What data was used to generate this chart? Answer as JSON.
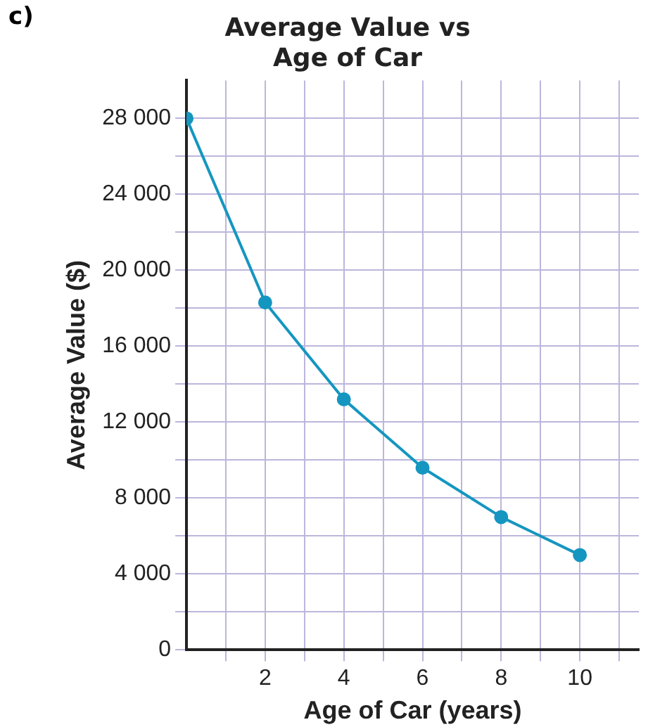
{
  "chart_data": {
    "type": "line",
    "title": [
      "Average Value vs",
      "Age of Car"
    ],
    "xlabel": "Age of Car (years)",
    "ylabel": "Average Value ($)",
    "annotations": [
      "c)"
    ],
    "x": [
      0,
      2,
      4,
      6,
      8,
      10
    ],
    "series": [
      {
        "color": "#1596c0",
        "values": [
          28000,
          18300,
          13200,
          9600,
          7000,
          5000
        ]
      }
    ],
    "xlim": [
      0,
      11.5
    ],
    "ylim": [
      0,
      30000
    ],
    "xticks": [
      {
        "value": 1,
        "label": null
      },
      2,
      {
        "value": 3,
        "label": null
      },
      4,
      {
        "value": 5,
        "label": null
      },
      6,
      {
        "value": 7,
        "label": null
      },
      8,
      {
        "value": 9,
        "label": null
      },
      10,
      {
        "value": 11,
        "label": null
      }
    ],
    "yticks": [
      0,
      {
        "value": 2000,
        "label": null
      },
      {
        "value": 4000,
        "label": "4 000"
      },
      {
        "value": 6000,
        "label": null
      },
      {
        "value": 8000,
        "label": "8 000"
      },
      {
        "value": 10000,
        "label": null
      },
      {
        "value": 12000,
        "label": "12 000"
      },
      {
        "value": 14000,
        "label": null
      },
      {
        "value": 16000,
        "label": "16 000"
      },
      {
        "value": 18000,
        "label": null
      },
      {
        "value": 20000,
        "label": "20 000"
      },
      {
        "value": 22000,
        "label": null
      },
      {
        "value": 24000,
        "label": "24 000"
      },
      {
        "value": 26000,
        "label": null
      },
      {
        "value": 28000,
        "label": "28 000"
      }
    ],
    "grid": true,
    "marker": "circle",
    "line_style": "solid",
    "legend": false
  }
}
